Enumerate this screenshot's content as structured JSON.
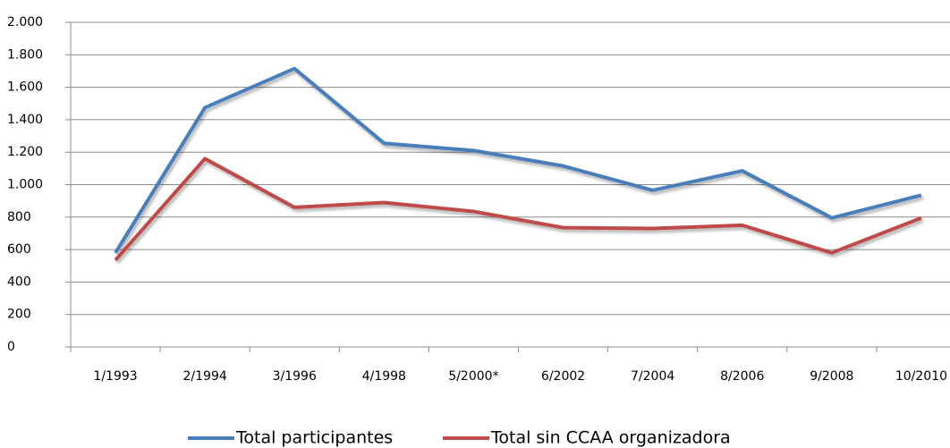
{
  "chart_data": {
    "type": "line",
    "categories": [
      "1/1993",
      "2/1994",
      "3/1996",
      "4/1998",
      "5/2000*",
      "6/2002",
      "7/2004",
      "8/2006",
      "9/2008",
      "10/2010"
    ],
    "series": [
      {
        "name": "Total participantes",
        "color": "#4a7ebb",
        "values": [
          580,
          1475,
          1715,
          1255,
          1210,
          1115,
          965,
          1085,
          795,
          935
        ]
      },
      {
        "name": "Total sin CCAA organizadora",
        "color": "#be4b48",
        "values": [
          535,
          1160,
          860,
          890,
          835,
          735,
          730,
          750,
          580,
          795
        ]
      }
    ],
    "ylim": [
      0,
      2000
    ],
    "yticks": [
      0,
      200,
      400,
      600,
      800,
      {
        "value": 1000,
        "label": "1.000"
      },
      {
        "value": 1200,
        "label": "1.200"
      },
      {
        "value": 1400,
        "label": "1.400"
      },
      {
        "value": 1600,
        "label": "1.600"
      },
      {
        "value": 1800,
        "label": "1.800"
      },
      {
        "value": 2000,
        "label": "2.000"
      }
    ],
    "grid": true,
    "legend": "bottom"
  }
}
